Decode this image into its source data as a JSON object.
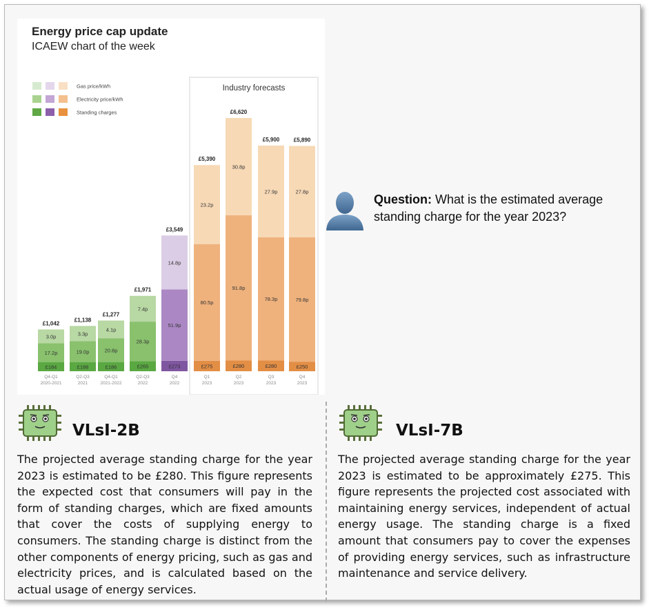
{
  "chart_panel": {
    "title": "Energy price cap update",
    "subtitle": "ICAEW chart of the week"
  },
  "chart_data": {
    "type": "bar",
    "stacked": true,
    "forecast_label": "Industry forecasts",
    "legend": {
      "placement": "top-left",
      "entries": [
        "Gas price/kWh",
        "Electricity price/kWh",
        "Standing charges"
      ]
    },
    "categories": [
      {
        "line1": "Q4-Q1",
        "line2": "2020-2021"
      },
      {
        "line1": "Q2-Q3",
        "line2": "2021"
      },
      {
        "line1": "Q4-Q1",
        "line2": "2021-2022"
      },
      {
        "line1": "Q2-Q3",
        "line2": "2022"
      },
      {
        "line1": "Q4",
        "line2": "2022"
      },
      {
        "line1": "Q1",
        "line2": "2023"
      },
      {
        "line1": "Q2",
        "line2": "2023"
      },
      {
        "line1": "Q3",
        "line2": "2023"
      },
      {
        "line1": "Q4",
        "line2": "2023"
      }
    ],
    "totals": [
      "£1,042",
      "£1,138",
      "£1,277",
      "£1,971",
      "£3,549",
      "£5,390",
      "£6,620",
      "£5,900",
      "£5,890"
    ],
    "total_values": [
      1042,
      1138,
      1277,
      1971,
      3549,
      5390,
      6620,
      5900,
      5890
    ],
    "series": [
      {
        "name": "Standing charges",
        "labels": [
          "£184",
          "£188",
          "£186",
          "£265",
          "£273",
          "£275",
          "£280",
          "£280",
          "£250"
        ],
        "values": [
          184,
          188,
          186,
          265,
          273,
          275,
          280,
          280,
          250
        ]
      },
      {
        "name": "Electricity price/kWh",
        "labels": [
          "17.2p",
          "19.0p",
          "20.8p",
          "28.3p",
          "51.9p",
          "80.5p",
          "91.8p",
          "78.3p",
          "79.8p"
        ],
        "values": [
          498,
          554,
          629,
          1032,
          1866,
          3050,
          3800,
          3220,
          3250
        ]
      },
      {
        "name": "Gas price/kWh",
        "labels": [
          "3.0p",
          "3.3p",
          "4.1p",
          "7.4p",
          "14.8p",
          "23.2p",
          "30.8p",
          "27.9p",
          "27.8p"
        ],
        "values": [
          360,
          396,
          462,
          674,
          1410,
          2065,
          2540,
          2400,
          2390
        ]
      }
    ],
    "colors": {
      "green": [
        "#b8d8a4",
        "#89c16d",
        "#5aa842"
      ],
      "green_legend": [
        "#d6ead0",
        "#a9d28f",
        "#5fa845"
      ],
      "purple": [
        "#dccde6",
        "#ab88c4",
        "#7f56a0"
      ],
      "purple_legend": [
        "#e4d7ec",
        "#c3a6d4",
        "#8d5fab"
      ],
      "orange": [
        "#f7d9b6",
        "#efb27d",
        "#e38e45"
      ],
      "orange_legend": [
        "#f9e0c4",
        "#f3c08e",
        "#e8913f"
      ],
      "forecast_border": "#e2e2e2"
    },
    "ylim": [
      0,
      7000
    ]
  },
  "question": {
    "label": "Question:",
    "text": "What is the estimated average standing charge for the year 2023?",
    "icon": "user-icon"
  },
  "models": [
    {
      "name": "VLsI-2B",
      "icon": "chip-mascot-icon",
      "answer": "The projected average standing charge for the year 2023 is estimated to be £280. This figure represents the expected cost that consumers will pay in the form of standing charges, which are fixed amounts that cover the costs of supplying energy to consumers. The standing charge is distinct from the other components of energy pricing, such as gas and electricity prices, and is calculated based on the actual usage of energy services."
    },
    {
      "name": "VLsI-7B",
      "icon": "chip-mascot-icon",
      "answer": "The projected average standing charge for the year 2023 is estimated to be approximately £275. This figure represents the projected cost associated with maintaining energy services, independent of actual energy usage. The standing charge is a fixed amount that consumers pay to cover the expenses of providing energy services, such as infrastructure maintenance and service delivery."
    }
  ]
}
